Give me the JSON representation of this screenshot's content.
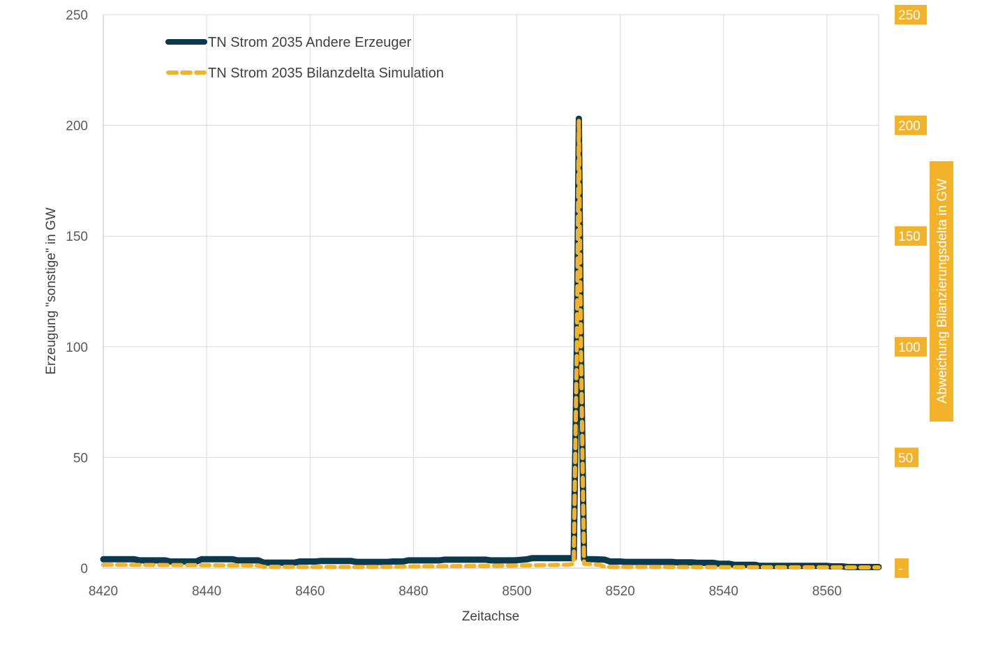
{
  "chart_data": {
    "type": "line",
    "xlabel": "Zeitachse",
    "ylabel": "Erzeugung \"sonstige\" in GW",
    "ylabel_right": "Abweichung Bilanzierungsdelta in GW",
    "xlim": [
      8420,
      8570
    ],
    "ylim": [
      0,
      250
    ],
    "ylim_right": [
      0,
      250
    ],
    "x_ticks": [
      "8420",
      "8440",
      "8460",
      "8480",
      "8500",
      "8520",
      "8540",
      "8560"
    ],
    "y_ticks": [
      "0",
      "50",
      "100",
      "150",
      "200",
      "250"
    ],
    "y_right_ticks": [
      "-",
      "50",
      "100",
      "150",
      "200",
      "250"
    ],
    "grid": true,
    "legend_position": "top-left",
    "colors": {
      "series1": "#0b3a4f",
      "series2": "#f2b22a",
      "right_axis_bg": "#f2b22a",
      "grid": "#d9d9d9"
    },
    "series": [
      {
        "name": "TN Strom 2035 Andere Erzeuger",
        "axis": "left",
        "style": "solid",
        "x": [
          8420,
          8426,
          8427,
          8432,
          8433,
          8437,
          8438,
          8439,
          8445,
          8446,
          8450,
          8451,
          8457,
          8458,
          8461,
          8462,
          8468,
          8469,
          8475,
          8476,
          8478,
          8479,
          8485,
          8486,
          8494,
          8495,
          8499,
          8500,
          8502,
          8503,
          8511,
          8511.6,
          8512,
          8512.4,
          8513,
          8515,
          8517,
          8518,
          8520,
          8521,
          8530,
          8531,
          8534,
          8535,
          8538,
          8539,
          8541,
          8542,
          8546,
          8547,
          8560,
          8561,
          8563,
          8564,
          8570
        ],
        "values": [
          4,
          4,
          3.5,
          3.5,
          3,
          3,
          3,
          4,
          4,
          3.5,
          3.5,
          2.5,
          2.5,
          3,
          3,
          3.2,
          3.2,
          2.8,
          2.8,
          3,
          3,
          3.5,
          3.5,
          3.8,
          3.8,
          3.5,
          3.5,
          3.6,
          4,
          4.5,
          4.5,
          100,
          203,
          100,
          4,
          4,
          3.8,
          3,
          3,
          2.8,
          2.8,
          2.6,
          2.6,
          2.4,
          2.4,
          2,
          2,
          1.5,
          1.5,
          1,
          1,
          0.8,
          0.8,
          0.5,
          0.5
        ]
      },
      {
        "name": "TN Strom 2035 Bilanzdelta Simulation",
        "axis": "right",
        "style": "dashed",
        "x": [
          8420,
          8450,
          8451,
          8470,
          8500,
          8510,
          8511,
          8511.6,
          8512,
          8512.4,
          8513,
          8516,
          8517,
          8540,
          8570
        ],
        "values": [
          1.5,
          1.2,
          0.6,
          0.5,
          1.2,
          1.5,
          2,
          100,
          202,
          100,
          2,
          1.5,
          0.6,
          0.4,
          0.3
        ]
      }
    ]
  }
}
